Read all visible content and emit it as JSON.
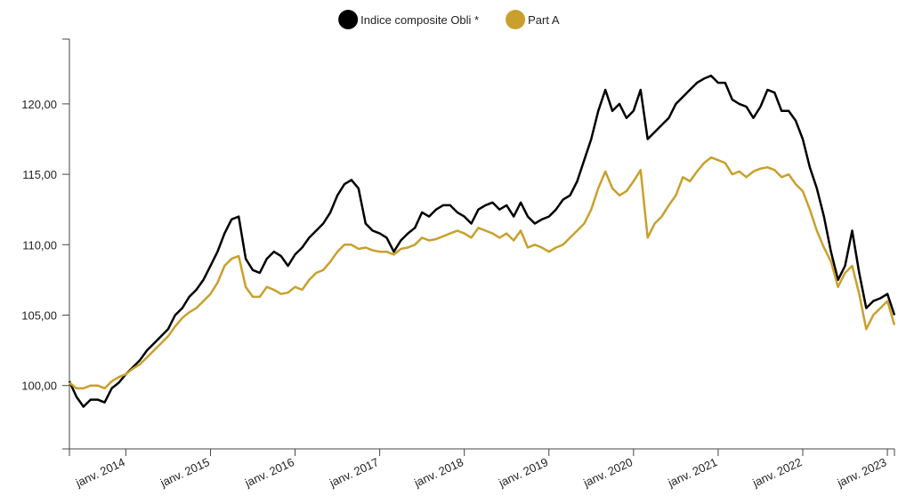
{
  "chart_data": {
    "type": "line",
    "x": [
      "2013-05",
      "2013-06",
      "2013-07",
      "2013-08",
      "2013-09",
      "2013-10",
      "2013-11",
      "2013-12",
      "2014-01",
      "2014-02",
      "2014-03",
      "2014-04",
      "2014-05",
      "2014-06",
      "2014-07",
      "2014-08",
      "2014-09",
      "2014-10",
      "2014-11",
      "2014-12",
      "2015-01",
      "2015-02",
      "2015-03",
      "2015-04",
      "2015-05",
      "2015-06",
      "2015-07",
      "2015-08",
      "2015-09",
      "2015-10",
      "2015-11",
      "2015-12",
      "2016-01",
      "2016-02",
      "2016-03",
      "2016-04",
      "2016-05",
      "2016-06",
      "2016-07",
      "2016-08",
      "2016-09",
      "2016-10",
      "2016-11",
      "2016-12",
      "2017-01",
      "2017-02",
      "2017-03",
      "2017-04",
      "2017-05",
      "2017-06",
      "2017-07",
      "2017-08",
      "2017-09",
      "2017-10",
      "2017-11",
      "2017-12",
      "2018-01",
      "2018-02",
      "2018-03",
      "2018-04",
      "2018-05",
      "2018-06",
      "2018-07",
      "2018-08",
      "2018-09",
      "2018-10",
      "2018-11",
      "2018-12",
      "2019-01",
      "2019-02",
      "2019-03",
      "2019-04",
      "2019-05",
      "2019-06",
      "2019-07",
      "2019-08",
      "2019-09",
      "2019-10",
      "2019-11",
      "2019-12",
      "2020-01",
      "2020-02",
      "2020-03",
      "2020-04",
      "2020-05",
      "2020-06",
      "2020-07",
      "2020-08",
      "2020-09",
      "2020-10",
      "2020-11",
      "2020-12",
      "2021-01",
      "2021-02",
      "2021-03",
      "2021-04",
      "2021-05",
      "2021-06",
      "2021-07",
      "2021-08",
      "2021-09",
      "2021-10",
      "2021-11",
      "2021-12",
      "2022-01",
      "2022-02",
      "2022-03",
      "2022-04",
      "2022-05",
      "2022-06",
      "2022-07",
      "2022-08",
      "2022-09",
      "2022-10",
      "2022-11",
      "2022-12",
      "2023-01",
      "2023-02"
    ],
    "series": [
      {
        "name": "Indice composite Obli *",
        "color": "#000000",
        "values": [
          100.3,
          99.2,
          98.5,
          99.0,
          99.0,
          98.8,
          99.8,
          100.2,
          100.8,
          101.3,
          101.8,
          102.5,
          103.0,
          103.5,
          104.0,
          105.0,
          105.5,
          106.3,
          106.8,
          107.5,
          108.5,
          109.5,
          110.8,
          111.8,
          112.0,
          109.0,
          108.2,
          108.0,
          109.0,
          109.5,
          109.2,
          108.5,
          109.3,
          109.8,
          110.5,
          111.0,
          111.5,
          112.3,
          113.5,
          114.3,
          114.6,
          114.0,
          111.5,
          111.0,
          110.8,
          110.5,
          109.5,
          110.3,
          110.8,
          111.2,
          112.3,
          112.0,
          112.5,
          112.8,
          112.8,
          112.3,
          112.0,
          111.5,
          112.5,
          112.8,
          113.0,
          112.5,
          112.8,
          112.0,
          113.0,
          112.0,
          111.5,
          111.8,
          112.0,
          112.5,
          113.2,
          113.5,
          114.5,
          116.0,
          117.5,
          119.5,
          121.0,
          119.5,
          120.0,
          119.0,
          119.5,
          121.0,
          117.5,
          118.0,
          118.5,
          119.0,
          120.0,
          120.5,
          121.0,
          121.5,
          121.8,
          122.0,
          121.5,
          121.5,
          120.3,
          120.0,
          119.8,
          119.0,
          119.8,
          121.0,
          120.8,
          119.5,
          119.5,
          118.8,
          117.5,
          115.5,
          114.0,
          112.0,
          109.5,
          107.5,
          108.5,
          111.0,
          108.0,
          105.5,
          106.0,
          106.2,
          106.5,
          105.0
        ]
      },
      {
        "name": "Part A",
        "color": "#c9a02c",
        "values": [
          100.2,
          99.8,
          99.8,
          100.0,
          100.0,
          99.8,
          100.3,
          100.6,
          100.8,
          101.2,
          101.5,
          102.0,
          102.5,
          103.0,
          103.5,
          104.2,
          104.8,
          105.2,
          105.5,
          106.0,
          106.5,
          107.3,
          108.5,
          109.0,
          109.2,
          107.0,
          106.3,
          106.3,
          107.0,
          106.8,
          106.5,
          106.6,
          107.0,
          106.8,
          107.5,
          108.0,
          108.2,
          108.8,
          109.5,
          110.0,
          110.0,
          109.7,
          109.8,
          109.6,
          109.5,
          109.5,
          109.3,
          109.7,
          109.8,
          110.0,
          110.5,
          110.3,
          110.4,
          110.6,
          110.8,
          111.0,
          110.8,
          110.5,
          111.2,
          111.0,
          110.8,
          110.5,
          110.8,
          110.3,
          111.0,
          109.8,
          110.0,
          109.8,
          109.5,
          109.8,
          110.0,
          110.5,
          111.0,
          111.5,
          112.5,
          114.0,
          115.2,
          114.0,
          113.5,
          113.8,
          114.5,
          115.3,
          110.5,
          111.5,
          112.0,
          112.8,
          113.5,
          114.8,
          114.5,
          115.2,
          115.8,
          116.2,
          116.0,
          115.8,
          115.0,
          115.2,
          114.8,
          115.2,
          115.4,
          115.5,
          115.3,
          114.8,
          115.0,
          114.3,
          113.8,
          112.5,
          111.0,
          109.8,
          108.8,
          107.0,
          108.0,
          108.5,
          106.5,
          104.0,
          105.0,
          105.5,
          106.0,
          104.3
        ]
      }
    ],
    "xlim": [
      "2013-05",
      "2023-02"
    ],
    "xticks": [
      {
        "value": "2014-01",
        "label": "janv. 2014"
      },
      {
        "value": "2015-01",
        "label": "janv. 2015"
      },
      {
        "value": "2016-01",
        "label": "janv. 2016"
      },
      {
        "value": "2017-01",
        "label": "janv. 2017"
      },
      {
        "value": "2018-01",
        "label": "janv. 2018"
      },
      {
        "value": "2019-01",
        "label": "janv. 2019"
      },
      {
        "value": "2020-01",
        "label": "janv. 2020"
      },
      {
        "value": "2021-01",
        "label": "janv. 2021"
      },
      {
        "value": "2022-01",
        "label": "janv. 2022"
      },
      {
        "value": "2023-01",
        "label": "janv. 2023"
      }
    ],
    "ylim": [
      95.5,
      124.6
    ],
    "yticks": [
      {
        "value": 100,
        "label": "100,00"
      },
      {
        "value": 105,
        "label": "105,00"
      },
      {
        "value": 110,
        "label": "110,00"
      },
      {
        "value": 115,
        "label": "115,00"
      },
      {
        "value": 120,
        "label": "120,00"
      }
    ],
    "legend": "top"
  }
}
